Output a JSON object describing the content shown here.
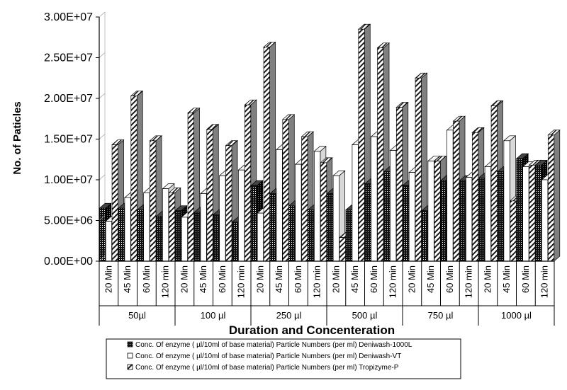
{
  "chart_data": {
    "type": "bar",
    "title": "",
    "xlabel": "Duration and Concenteration",
    "ylabel": "No. of Paticles",
    "ylim": [
      0,
      30000000
    ],
    "y_ticks": [
      "0.00E+00",
      "5.00E+06",
      "1.00E+07",
      "1.50E+07",
      "2.00E+07",
      "2.50E+07",
      "3.00E+07"
    ],
    "y_tick_values": [
      0,
      5000000,
      10000000,
      15000000,
      20000000,
      25000000,
      30000000
    ],
    "groups": [
      {
        "label": "50µl",
        "categories": [
          "20 Min",
          "45 Min",
          "60 Min",
          "120 min"
        ]
      },
      {
        "label": "100  µl",
        "categories": [
          "20 Min",
          "45 Min",
          "60 Min",
          "120 min"
        ]
      },
      {
        "label": "250  µl",
        "categories": [
          "20 Min",
          "45 Min",
          "60 Min",
          "120 min"
        ]
      },
      {
        "label": "500  µl",
        "categories": [
          "20 Min",
          "45 Min",
          "60 Min",
          "120 min"
        ]
      },
      {
        "label": "750  µl",
        "categories": [
          "20 Min",
          "45 Min",
          "60 Min",
          "120 min"
        ]
      },
      {
        "label": "1000  µl",
        "categories": [
          "20 Min",
          "45 Min",
          "60 Min",
          "120 min"
        ]
      }
    ],
    "series": [
      {
        "name": "Conc. Of enzyme (    µl/10ml of base material) Particle Numbers (per ml) Deniwash-1000L",
        "values": [
          6500000,
          6500000,
          6300000,
          5500000,
          6200000,
          6000000,
          5700000,
          4800000,
          9300000,
          8300000,
          6800000,
          6300000,
          8300000,
          6300000,
          9500000,
          11000000,
          9300000,
          6200000,
          9900000,
          9900000,
          10200000,
          11000000,
          12600000,
          11800000
        ]
      },
      {
        "name": "Conc. Of enzyme (    µl/10ml of base material) Particle Numbers (per ml) Deniwash-VT",
        "values": [
          4900000,
          7800000,
          8400000,
          8900000,
          5400000,
          8300000,
          10500000,
          11200000,
          5900000,
          13700000,
          11900000,
          13500000,
          10500000,
          14300000,
          15300000,
          13600000,
          10900000,
          12300000,
          16100000,
          10300000,
          11600000,
          14800000,
          11600000,
          10000000
        ]
      },
      {
        "name": "Conc. Of enzyme (    µl/10ml of base material) Particle Numbers (per ml) Tropizyme-P",
        "values": [
          14300000,
          20300000,
          14800000,
          8400000,
          18200000,
          16200000,
          14200000,
          19200000,
          26300000,
          17400000,
          15300000,
          12100000,
          2900000,
          28500000,
          26200000,
          18900000,
          22500000,
          12300000,
          17200000,
          15800000,
          19100000,
          7400000,
          11800000,
          15500000
        ]
      }
    ],
    "legend": "bottom",
    "grid": false,
    "colors": {
      "series1": "#1a1a1a",
      "series2": "#ffffff",
      "series3": "#909090",
      "outline": "#000000"
    }
  }
}
